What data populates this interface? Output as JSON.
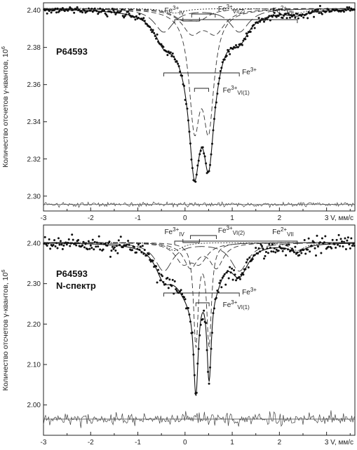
{
  "chart_data": [
    {
      "type": "scatter",
      "sample_label": "P64593",
      "sample_label_2": "",
      "ylabel": "Количество отсчетов γ-квантов, 10",
      "ylabel_exp": "6",
      "xlabel": "V, мм/с",
      "xlim": [
        -3,
        3.6
      ],
      "ylim": [
        2.292,
        2.404
      ],
      "yticks": [
        "2.30",
        "2.32",
        "2.34",
        "2.36",
        "2.38",
        "2.40"
      ],
      "xticks": [
        "-3",
        "-2",
        "-1",
        "0",
        "1",
        "2",
        "3"
      ],
      "baseline": 2.401,
      "residual_level": 2.2955,
      "components": [
        {
          "name": "Fe3+",
          "sub": "",
          "isomer_shift": 0.35,
          "quadrupole": 1.6,
          "width": 0.5,
          "depth": 0.0125,
          "style": "long-dash"
        },
        {
          "name": "Fe3+",
          "sub": "VI(1)",
          "isomer_shift": 0.35,
          "quadrupole": 0.3,
          "width": 0.28,
          "depth": 0.058,
          "style": "dash"
        },
        {
          "name": "Fe3+",
          "sub": "VI(2)",
          "isomer_shift": 0.39,
          "quadrupole": 0.5,
          "width": 0.5,
          "depth": 0.012,
          "style": "dash"
        },
        {
          "name": "Fe3+",
          "sub": "IV",
          "isomer_shift": 0.13,
          "quadrupole": 0.35,
          "width": 0.5,
          "depth": 0.005,
          "style": "dash"
        },
        {
          "name": "Fe2+",
          "sub": "VII",
          "isomer_shift": 1.08,
          "quadrupole": 2.6,
          "width": 0.5,
          "depth": 0.0025,
          "style": "dot"
        }
      ],
      "annotations": [
        {
          "text": "Fe",
          "sup": "3+",
          "sub": "IV"
        },
        {
          "text": "Fe",
          "sup": "3+",
          "sub": "VI(2)"
        },
        {
          "text": "Fe",
          "sup": "2+",
          "sub": "VII"
        },
        {
          "text": "Fe",
          "sup": "3+",
          "sub": ""
        },
        {
          "text": "Fe",
          "sup": "3+",
          "sub": "VI(1)"
        }
      ]
    },
    {
      "type": "scatter",
      "sample_label": "P64593",
      "sample_label_2": "N-спектр",
      "ylabel": "Количество отсчетов γ-квантов, 10",
      "ylabel_exp": "6",
      "xlabel": "V, мм/с",
      "xlim": [
        -3,
        3.6
      ],
      "ylim": [
        1.925,
        2.445
      ],
      "yticks": [
        "2.00",
        "2.10",
        "2.20",
        "2.30",
        "2.40"
      ],
      "xticks": [
        "-3",
        "-2",
        "-1",
        "0",
        "1",
        "2",
        "3"
      ],
      "baseline": 2.402,
      "residual_level": 1.965,
      "components": [
        {
          "name": "Fe3+",
          "sub": "",
          "isomer_shift": 0.35,
          "quadrupole": 1.6,
          "width": 0.45,
          "depth": 0.07,
          "style": "long-dash"
        },
        {
          "name": "Fe3+",
          "sub": "VI(1)",
          "isomer_shift": 0.37,
          "quadrupole": 0.28,
          "width": 0.12,
          "depth": 0.25,
          "style": "dash"
        },
        {
          "name": "Fe3+",
          "sub": "VI(2)",
          "isomer_shift": 0.39,
          "quadrupole": 0.55,
          "width": 0.35,
          "depth": 0.06,
          "style": "dash"
        },
        {
          "name": "Fe3+",
          "sub": "IV",
          "isomer_shift": 0.13,
          "quadrupole": 0.35,
          "width": 0.4,
          "depth": 0.045,
          "style": "dash"
        },
        {
          "name": "Fe2+",
          "sub": "VII",
          "isomer_shift": 1.08,
          "quadrupole": 2.6,
          "width": 0.4,
          "depth": 0.02,
          "style": "dot"
        }
      ],
      "annotations": [
        {
          "text": "Fe",
          "sup": "3+",
          "sub": "IV"
        },
        {
          "text": "Fe",
          "sup": "3+",
          "sub": "VI(2)"
        },
        {
          "text": "Fe",
          "sup": "2+",
          "sub": "VII"
        },
        {
          "text": "Fe",
          "sup": "3+",
          "sub": ""
        },
        {
          "text": "Fe",
          "sup": "3+",
          "sub": "VI(1)"
        }
      ]
    }
  ]
}
